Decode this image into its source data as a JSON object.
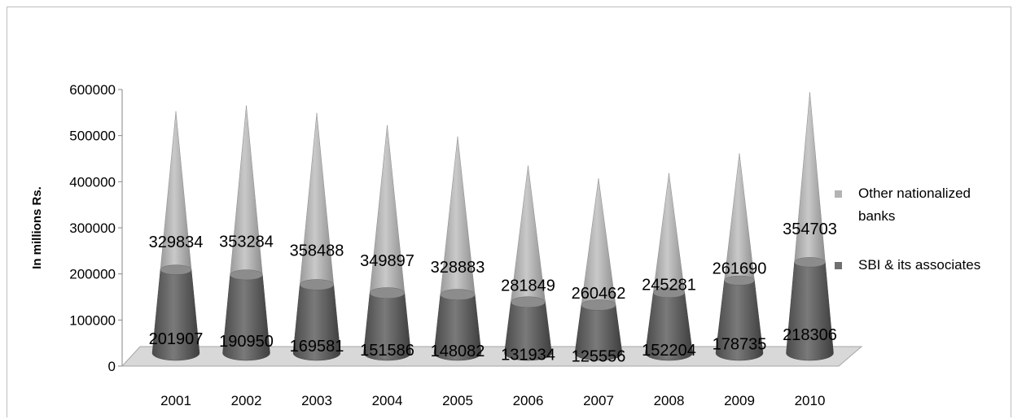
{
  "chart_data": {
    "type": "bar",
    "style": "3d-cone-stacked",
    "title": "",
    "xlabel": "",
    "ylabel": "In millions Rs.",
    "ylim": [
      0,
      600000
    ],
    "yticks": [
      0,
      100000,
      200000,
      300000,
      400000,
      500000,
      600000
    ],
    "grid": false,
    "legend_position": "right",
    "categories": [
      "2001",
      "2002",
      "2003",
      "2004",
      "2005",
      "2006",
      "2007",
      "2008",
      "2009",
      "2010"
    ],
    "series": [
      {
        "name": "SBI & its associates",
        "color": "#707070",
        "values": [
          201907,
          190950,
          169581,
          151586,
          148082,
          131934,
          125556,
          152204,
          178735,
          218306
        ]
      },
      {
        "name": "Other nationalized banks",
        "color": "#b4b4b4",
        "values": [
          329834,
          353284,
          358488,
          349897,
          328883,
          281849,
          260462,
          245281,
          261690,
          354703
        ]
      }
    ],
    "legend": {
      "items": [
        {
          "label_lines": [
            "Other nationalized",
            "banks"
          ],
          "color": "#b4b4b4"
        },
        {
          "label_lines": [
            "SBI & its associates"
          ],
          "color": "#707070"
        }
      ]
    }
  }
}
